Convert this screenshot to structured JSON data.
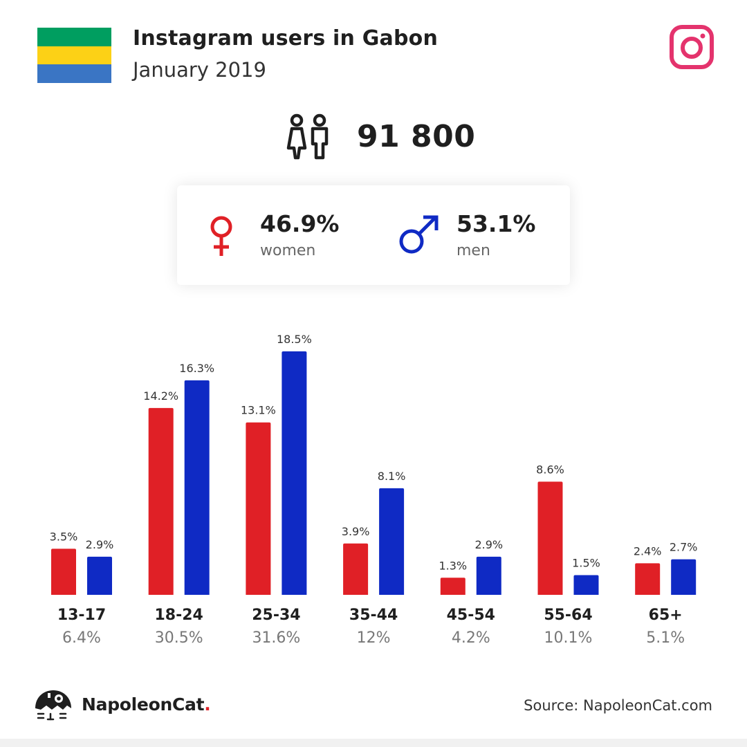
{
  "header": {
    "title": "Instagram users in Gabon",
    "subtitle": "January 2019",
    "flag_colors": [
      "#009e60",
      "#fcd116",
      "#3a75c4"
    ],
    "instagram_icon": "instagram-icon",
    "instagram_color": "#e4336d"
  },
  "summary": {
    "total_users": "91 800",
    "users_icon": "people-icon"
  },
  "gender": {
    "women": {
      "percent": "46.9%",
      "label": "women",
      "icon": "female-symbol-icon",
      "color": "#e02026"
    },
    "men": {
      "percent": "53.1%",
      "label": "men",
      "icon": "male-symbol-icon",
      "color": "#0f2ac4"
    }
  },
  "chart_data": {
    "type": "bar",
    "categories": [
      "13-17",
      "18-24",
      "25-34",
      "35-44",
      "45-54",
      "55-64",
      "65+"
    ],
    "category_totals": [
      "6.4%",
      "30.5%",
      "31.6%",
      "12%",
      "4.2%",
      "10.1%",
      "5.1%"
    ],
    "series": [
      {
        "color": "#e02026",
        "values": [
          3.5,
          14.2,
          13.1,
          3.9,
          1.3,
          8.6,
          2.4
        ],
        "labels": [
          "3.5%",
          "14.2%",
          "13.1%",
          "3.9%",
          "1.3%",
          "8.6%",
          "2.4%"
        ]
      },
      {
        "color": "#0f2ac4",
        "values": [
          2.9,
          16.3,
          18.5,
          8.1,
          2.9,
          1.5,
          2.7
        ],
        "labels": [
          "2.9%",
          "16.3%",
          "18.5%",
          "8.1%",
          "2.9%",
          "1.5%",
          "2.7%"
        ]
      }
    ],
    "ylim": [
      0,
      18.5
    ],
    "grid": false
  },
  "footer": {
    "brand_name": "NapoleonCat",
    "brand_dot": ".",
    "logo_icon": "napoleoncat-logo-icon",
    "source": "Source: NapoleonCat.com"
  }
}
